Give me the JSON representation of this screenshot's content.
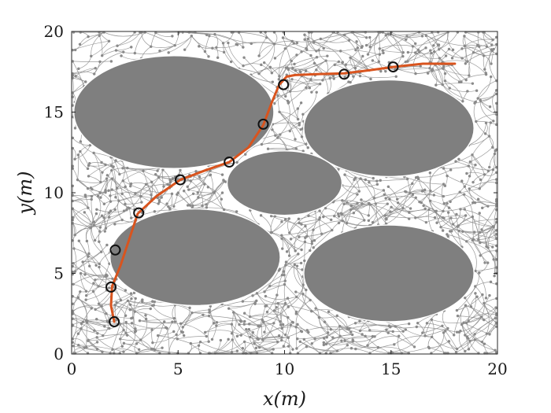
{
  "chart_data": {
    "type": "scatter",
    "title": "",
    "xlabel": "x(m)",
    "ylabel": "y(m)",
    "xlim": [
      0,
      20
    ],
    "ylim": [
      0,
      20
    ],
    "xticks": [
      "0",
      "5",
      "10",
      "15",
      "20"
    ],
    "yticks": [
      "0",
      "5",
      "10",
      "15",
      "20"
    ],
    "grid": false,
    "obstacles": [
      {
        "cx": 4.8,
        "cy": 15.0,
        "rx": 4.7,
        "ry": 3.5
      },
      {
        "cx": 14.9,
        "cy": 14.0,
        "rx": 4.0,
        "ry": 3.0
      },
      {
        "cx": 10.0,
        "cy": 10.6,
        "rx": 2.7,
        "ry": 2.0
      },
      {
        "cx": 5.8,
        "cy": 6.0,
        "rx": 4.0,
        "ry": 3.0
      },
      {
        "cx": 14.9,
        "cy": 5.0,
        "rx": 4.0,
        "ry": 3.0
      }
    ],
    "path": {
      "x": [
        2.0,
        1.85,
        1.9,
        2.3,
        3.1,
        4.0,
        5.1,
        6.3,
        7.4,
        8.3,
        9.0,
        9.4,
        9.75,
        10.1,
        10.5,
        11.5,
        12.8,
        14.0,
        15.1,
        16.5,
        18.0
      ],
      "y": [
        2.0,
        3.0,
        4.2,
        5.5,
        8.7,
        9.8,
        10.8,
        11.4,
        11.9,
        12.8,
        14.2,
        15.6,
        16.7,
        17.2,
        17.3,
        17.35,
        17.4,
        17.6,
        17.8,
        18.0,
        18.0
      ]
    },
    "waypoints": {
      "x": [
        2.0,
        1.85,
        2.05,
        3.15,
        5.1,
        7.4,
        9.0,
        9.95,
        12.8,
        15.1
      ],
      "y": [
        2.0,
        4.15,
        6.45,
        8.75,
        10.8,
        11.9,
        14.25,
        16.7,
        17.35,
        17.8
      ]
    },
    "colors": {
      "path": "#d9541e",
      "obstacle": "#7f7f7f",
      "tree": "#8a8a8a",
      "waypoint": "#111111"
    }
  }
}
